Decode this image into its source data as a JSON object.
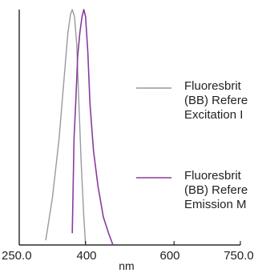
{
  "chart_data": {
    "type": "line",
    "title": "",
    "xlabel": "nm",
    "ylabel": "",
    "xlim": [
      250,
      750
    ],
    "ylim": [
      0,
      1
    ],
    "grid": false,
    "legend_position": "right",
    "x_ticks": [
      {
        "value": 250,
        "label": "250.0"
      },
      {
        "value": 400,
        "label": "400"
      },
      {
        "value": 600,
        "label": "600"
      },
      {
        "value": 750,
        "label": "750.0"
      }
    ],
    "series": [
      {
        "name": "Fluoresbrite (BB) Reference Excitation M",
        "legend_lines": [
          "Fluoresbrit",
          "(BB) Refere",
          "Excitation I"
        ],
        "color": "#9a9a9a",
        "points": [
          [
            310,
            0.02
          ],
          [
            325,
            0.2
          ],
          [
            340,
            0.45
          ],
          [
            352,
            0.72
          ],
          [
            360,
            0.9
          ],
          [
            366,
            0.98
          ],
          [
            370,
            1.0
          ],
          [
            375,
            0.97
          ],
          [
            380,
            0.85
          ],
          [
            385,
            0.6
          ],
          [
            390,
            0.35
          ],
          [
            396,
            0.12
          ],
          [
            400,
            0.0
          ]
        ]
      },
      {
        "name": "Fluoresbrite (BB) Reference Emission M",
        "legend_lines": [
          "Fluoresbrit",
          "(BB) Refere",
          "Emission M"
        ],
        "color": "#8a3b9c",
        "points": [
          [
            370,
            0.05
          ],
          [
            374,
            0.45
          ],
          [
            378,
            0.62
          ],
          [
            382,
            0.8
          ],
          [
            387,
            0.9
          ],
          [
            392,
            0.97
          ],
          [
            396,
            1.0
          ],
          [
            400,
            0.97
          ],
          [
            405,
            0.82
          ],
          [
            410,
            0.6
          ],
          [
            418,
            0.4
          ],
          [
            428,
            0.25
          ],
          [
            440,
            0.12
          ],
          [
            452,
            0.05
          ],
          [
            462,
            0.0
          ]
        ]
      }
    ]
  }
}
